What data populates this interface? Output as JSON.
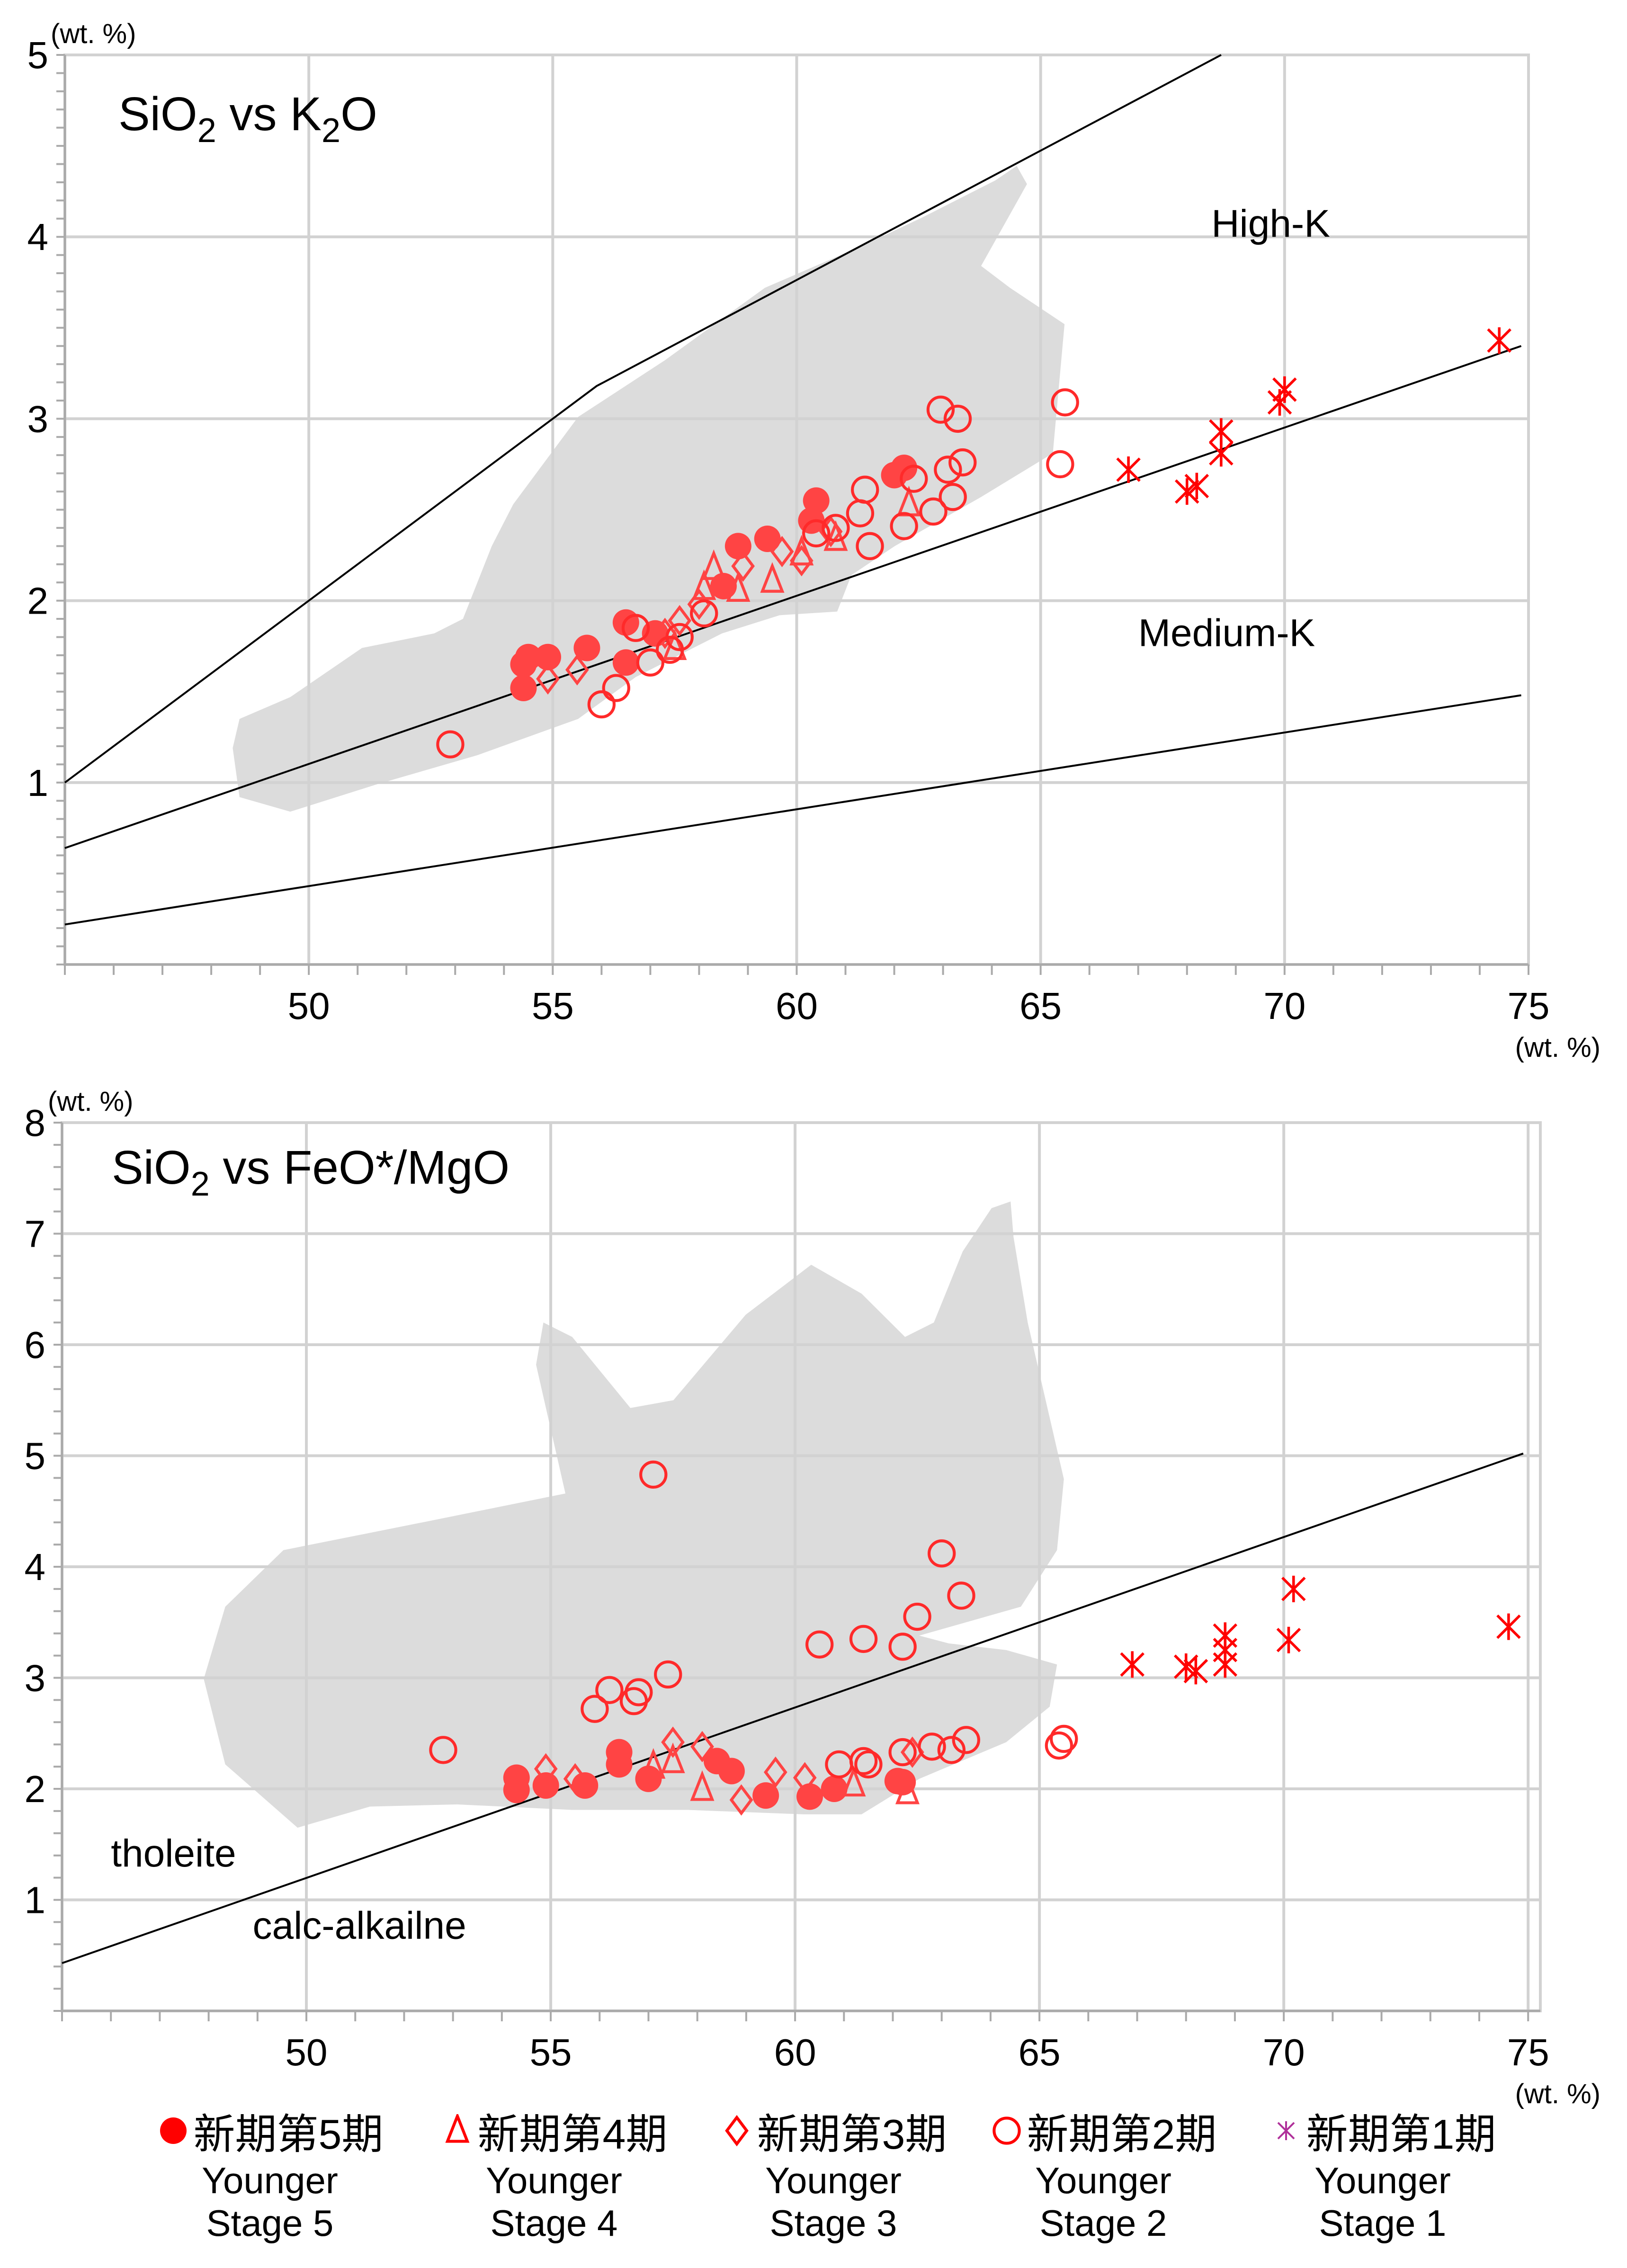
{
  "marker_colors": {
    "stage5": "#ff4444",
    "stage4": "#ff4444",
    "stage3": "#ff4444",
    "stage2": "#ff2a2a",
    "stage1": "#ff0000",
    "stage1_legend": "#b0309a"
  },
  "field_color": "#dcdcdc",
  "grid_color": "#d2d2d2",
  "chart_data": [
    {
      "type": "scatter",
      "title": "SiO2 vs K2O",
      "unit_label_y": "(wt. %)",
      "unit_label_x": "(wt. %)",
      "xlim": [
        45,
        75
      ],
      "ylim": [
        0,
        5
      ],
      "x_ticks": [
        50,
        55,
        60,
        65,
        70,
        75
      ],
      "y_ticks": [
        1,
        2,
        3,
        4,
        5
      ],
      "grid": true,
      "annotations": [
        {
          "text": "High-K",
          "x": 68.5,
          "y": 4.0
        },
        {
          "text": "Medium-K",
          "x": 67.0,
          "y": 1.75
        }
      ],
      "boundary_lines": [
        [
          [
            45,
            1.0
          ],
          [
            55.9,
            3.18
          ],
          [
            68.7,
            5.0
          ]
        ],
        [
          [
            45,
            0.64
          ],
          [
            74.85,
            3.4
          ]
        ],
        [
          [
            45,
            0.22
          ],
          [
            74.85,
            1.48
          ]
        ]
      ],
      "reference_field": [
        [
          48.44,
          1.19
        ],
        [
          48.58,
          0.92
        ],
        [
          49.62,
          0.84
        ],
        [
          51.39,
          0.99
        ],
        [
          53.45,
          1.15
        ],
        [
          55.52,
          1.35
        ],
        [
          56.7,
          1.58
        ],
        [
          58.47,
          1.82
        ],
        [
          59.65,
          1.92
        ],
        [
          60.83,
          1.94
        ],
        [
          61.12,
          2.14
        ],
        [
          62.01,
          2.3
        ],
        [
          63.78,
          2.57
        ],
        [
          65.25,
          2.81
        ],
        [
          65.49,
          3.52
        ],
        [
          64.37,
          3.72
        ],
        [
          63.78,
          3.84
        ],
        [
          64.72,
          4.29
        ],
        [
          64.51,
          4.39
        ],
        [
          64.07,
          4.31
        ],
        [
          62.6,
          4.11
        ],
        [
          61.42,
          3.96
        ],
        [
          59.35,
          3.72
        ],
        [
          57.29,
          3.32
        ],
        [
          55.52,
          3.01
        ],
        [
          54.19,
          2.53
        ],
        [
          53.75,
          2.3
        ],
        [
          53.16,
          1.9
        ],
        [
          52.57,
          1.82
        ],
        [
          51.09,
          1.74
        ],
        [
          49.62,
          1.47
        ],
        [
          48.58,
          1.35
        ]
      ],
      "series": [
        {
          "name": "Younger Stage 5",
          "marker": "filled-circle",
          "points": [
            [
              54.4,
              1.65
            ],
            [
              54.5,
              1.69
            ],
            [
              54.9,
              1.69
            ],
            [
              54.4,
              1.52
            ],
            [
              55.7,
              1.74
            ],
            [
              56.5,
              1.88
            ],
            [
              56.5,
              1.66
            ],
            [
              57.1,
              1.82
            ],
            [
              58.5,
              2.08
            ],
            [
              58.8,
              2.3
            ],
            [
              59.4,
              2.34
            ],
            [
              60.4,
              2.55
            ],
            [
              60.3,
              2.44
            ],
            [
              62.0,
              2.69
            ],
            [
              62.2,
              2.73
            ]
          ]
        },
        {
          "name": "Younger Stage 4",
          "marker": "triangle",
          "points": [
            [
              58.3,
              2.18
            ],
            [
              58.1,
              2.07
            ],
            [
              59.5,
              2.11
            ],
            [
              58.8,
              2.06
            ],
            [
              60.8,
              2.34
            ],
            [
              57.5,
              1.74
            ],
            [
              62.3,
              2.53
            ],
            [
              60.1,
              2.26
            ]
          ]
        },
        {
          "name": "Younger Stage 3",
          "marker": "diamond",
          "points": [
            [
              54.9,
              1.57
            ],
            [
              55.5,
              1.62
            ],
            [
              57.6,
              1.89
            ],
            [
              58.0,
              1.98
            ],
            [
              58.9,
              2.19
            ],
            [
              59.7,
              2.27
            ],
            [
              60.1,
              2.22
            ],
            [
              57.3,
              1.82
            ],
            [
              60.7,
              2.38
            ]
          ]
        },
        {
          "name": "Younger Stage 2",
          "marker": "open-circle",
          "points": [
            [
              52.9,
              1.21
            ],
            [
              65.5,
              3.09
            ],
            [
              65.4,
              2.75
            ],
            [
              62.95,
              3.05
            ],
            [
              63.3,
              3.0
            ],
            [
              63.4,
              2.76
            ],
            [
              63.1,
              2.72
            ],
            [
              63.2,
              2.57
            ],
            [
              62.8,
              2.49
            ],
            [
              62.2,
              2.41
            ],
            [
              61.5,
              2.3
            ],
            [
              61.4,
              2.61
            ],
            [
              61.3,
              2.48
            ],
            [
              62.4,
              2.67
            ],
            [
              60.4,
              2.37
            ],
            [
              56.0,
              1.43
            ],
            [
              56.3,
              1.52
            ],
            [
              57.0,
              1.66
            ],
            [
              57.4,
              1.73
            ],
            [
              58.1,
              1.93
            ],
            [
              56.7,
              1.85
            ],
            [
              57.6,
              1.8
            ],
            [
              60.8,
              2.4
            ]
          ]
        },
        {
          "name": "Younger Stage 1",
          "marker": "asterisk",
          "points": [
            [
              74.4,
              3.43
            ],
            [
              70.0,
              3.16
            ],
            [
              69.9,
              3.09
            ],
            [
              66.8,
              2.72
            ],
            [
              68.0,
              2.6
            ],
            [
              68.2,
              2.63
            ],
            [
              68.7,
              2.93
            ],
            [
              68.7,
              2.81
            ]
          ]
        }
      ]
    },
    {
      "type": "scatter",
      "title": "SiO2 vs FeO*/MgO",
      "unit_label_y": "(wt. %)",
      "unit_label_x": "(wt. %)",
      "xlim": [
        45,
        75.25
      ],
      "ylim": [
        0,
        8
      ],
      "x_ticks": [
        50,
        55,
        60,
        65,
        70,
        75
      ],
      "y_ticks": [
        1,
        2,
        3,
        4,
        5,
        6,
        7,
        8
      ],
      "grid": true,
      "annotations": [
        {
          "text": "tholeite",
          "x": 46.0,
          "y": 1.3
        },
        {
          "text": "calc-alkailne",
          "x": 48.9,
          "y": 0.65
        }
      ],
      "boundary_lines": [
        [
          [
            45,
            0.43
          ],
          [
            74.9,
            5.02
          ]
        ]
      ],
      "reference_field": [
        [
          47.9,
          2.99
        ],
        [
          48.34,
          2.22
        ],
        [
          49.82,
          1.65
        ],
        [
          51.3,
          1.84
        ],
        [
          53.08,
          1.86
        ],
        [
          55.44,
          1.81
        ],
        [
          57.81,
          1.81
        ],
        [
          60.18,
          1.77
        ],
        [
          61.36,
          1.77
        ],
        [
          62.54,
          2.09
        ],
        [
          64.32,
          2.42
        ],
        [
          65.21,
          2.74
        ],
        [
          65.36,
          3.12
        ],
        [
          64.32,
          3.25
        ],
        [
          63.14,
          3.31
        ],
        [
          62.54,
          3.38
        ],
        [
          64.62,
          3.64
        ],
        [
          65.36,
          4.15
        ],
        [
          65.5,
          4.79
        ],
        [
          64.76,
          6.2
        ],
        [
          64.47,
          6.97
        ],
        [
          64.41,
          7.29
        ],
        [
          64.02,
          7.23
        ],
        [
          63.43,
          6.84
        ],
        [
          62.84,
          6.2
        ],
        [
          62.25,
          6.07
        ],
        [
          61.36,
          6.46
        ],
        [
          60.33,
          6.72
        ],
        [
          58.99,
          6.27
        ],
        [
          57.51,
          5.5
        ],
        [
          56.63,
          5.43
        ],
        [
          55.44,
          6.07
        ],
        [
          54.85,
          6.2
        ],
        [
          54.7,
          5.82
        ],
        [
          55.3,
          4.66
        ],
        [
          52.49,
          4.41
        ],
        [
          49.53,
          4.15
        ],
        [
          48.34,
          3.64
        ]
      ],
      "series": [
        {
          "name": "Younger Stage 5",
          "marker": "filled-circle",
          "points": [
            [
              54.3,
              2.1
            ],
            [
              54.3,
              1.99
            ],
            [
              54.9,
              2.03
            ],
            [
              55.7,
              2.03
            ],
            [
              56.4,
              2.33
            ],
            [
              56.4,
              2.22
            ],
            [
              57.0,
              2.09
            ],
            [
              58.4,
              2.25
            ],
            [
              58.7,
              2.16
            ],
            [
              59.4,
              1.94
            ],
            [
              60.3,
              1.93
            ],
            [
              60.8,
              2.0
            ],
            [
              62.1,
              2.07
            ],
            [
              62.2,
              2.06
            ]
          ]
        },
        {
          "name": "Younger Stage 4",
          "marker": "triangle",
          "points": [
            [
              57.5,
              2.25
            ],
            [
              58.1,
              2.0
            ],
            [
              61.2,
              2.04
            ],
            [
              62.3,
              1.97
            ],
            [
              57.1,
              2.2
            ]
          ]
        },
        {
          "name": "Younger Stage 3",
          "marker": "diamond",
          "points": [
            [
              54.9,
              2.18
            ],
            [
              55.5,
              2.09
            ],
            [
              57.5,
              2.42
            ],
            [
              58.1,
              2.38
            ],
            [
              59.6,
              2.15
            ],
            [
              58.9,
              1.9
            ],
            [
              60.2,
              2.1
            ],
            [
              62.4,
              2.33
            ]
          ]
        },
        {
          "name": "Younger Stage 2",
          "marker": "open-circle",
          "points": [
            [
              52.8,
              2.35
            ],
            [
              57.1,
              4.83
            ],
            [
              63.0,
              4.12
            ],
            [
              63.4,
              3.74
            ],
            [
              62.5,
              3.55
            ],
            [
              61.4,
              3.35
            ],
            [
              60.5,
              3.3
            ],
            [
              62.2,
              3.28
            ],
            [
              57.4,
              3.03
            ],
            [
              56.2,
              2.89
            ],
            [
              56.8,
              2.87
            ],
            [
              56.7,
              2.79
            ],
            [
              55.9,
              2.72
            ],
            [
              65.5,
              2.45
            ],
            [
              65.4,
              2.39
            ],
            [
              63.5,
              2.44
            ],
            [
              63.2,
              2.35
            ],
            [
              62.8,
              2.38
            ],
            [
              62.2,
              2.33
            ],
            [
              61.4,
              2.25
            ],
            [
              60.9,
              2.22
            ],
            [
              61.5,
              2.22
            ]
          ]
        },
        {
          "name": "Younger Stage 1",
          "marker": "asterisk",
          "points": [
            [
              66.9,
              3.12
            ],
            [
              68.0,
              3.1
            ],
            [
              68.2,
              3.06
            ],
            [
              68.8,
              3.38
            ],
            [
              68.8,
              3.12
            ],
            [
              68.8,
              3.25
            ],
            [
              70.2,
              3.8
            ],
            [
              70.1,
              3.34
            ],
            [
              74.6,
              3.46
            ]
          ]
        }
      ]
    }
  ],
  "legend": [
    {
      "marker": "filled-circle",
      "jp": "新期第5期",
      "en1": "Younger",
      "en2": "Stage 5"
    },
    {
      "marker": "triangle",
      "jp": "新期第4期",
      "en1": "Younger",
      "en2": "Stage 4"
    },
    {
      "marker": "diamond",
      "jp": "新期第3期",
      "en1": "Younger",
      "en2": "Stage 3"
    },
    {
      "marker": "open-circle",
      "jp": "新期第2期",
      "en1": "Younger",
      "en2": "Stage 2"
    },
    {
      "marker": "asterisk",
      "jp": "新期第1期",
      "en1": "Younger",
      "en2": "Stage 1"
    }
  ]
}
